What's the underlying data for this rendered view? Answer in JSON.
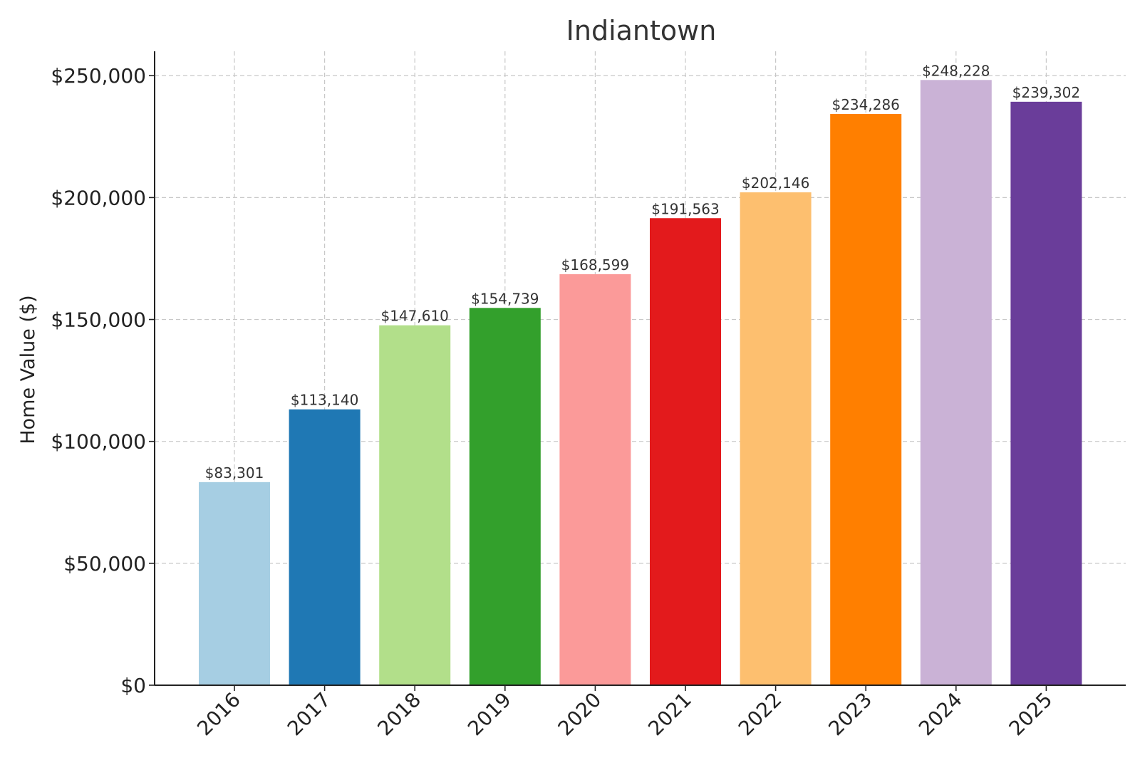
{
  "chart_data": {
    "type": "bar",
    "title": "Indiantown",
    "xlabel": "",
    "ylabel": "Home Value ($)",
    "categories": [
      "2016",
      "2017",
      "2018",
      "2019",
      "2020",
      "2021",
      "2022",
      "2023",
      "2024",
      "2025"
    ],
    "values": [
      83301,
      113140,
      147610,
      154739,
      168599,
      191563,
      202146,
      234286,
      248228,
      239302
    ],
    "value_labels": [
      "$83,301",
      "$113,140",
      "$147,610",
      "$154,739",
      "$168,599",
      "$191,563",
      "$202,146",
      "$234,286",
      "$248,228",
      "$239,302"
    ],
    "colors": [
      "#a6cee3",
      "#1f78b4",
      "#b2df8a",
      "#33a02c",
      "#fb9a99",
      "#e31a1c",
      "#fdbf6f",
      "#ff7f00",
      "#cab2d6",
      "#6a3d9a"
    ],
    "yticks": [
      0,
      50000,
      100000,
      150000,
      200000,
      250000
    ],
    "ytick_labels": [
      "$0",
      "$50,000",
      "$100,000",
      "$150,000",
      "$200,000",
      "$250,000"
    ],
    "ylim": [
      0,
      260000
    ],
    "grid": true,
    "xtick_rotation_deg": 45
  }
}
